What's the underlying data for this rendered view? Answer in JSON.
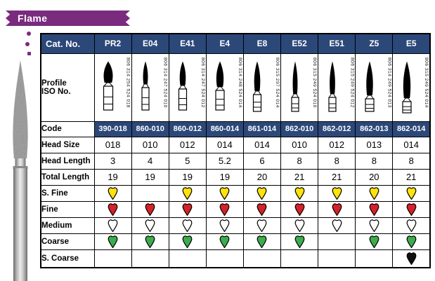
{
  "banner": {
    "title": "Flame"
  },
  "colors": {
    "banner_purple": "#7A2B7E",
    "header_bg": "#2B4879",
    "border": "#000000",
    "grit": {
      "s_fine": "#FFE20A",
      "fine": "#D6212A",
      "medium": "#FFFFFF",
      "coarse": "#3BAD4C",
      "s_coarse": "#101010"
    }
  },
  "table": {
    "header_label": "Cat. No.",
    "profile_label_lines": [
      "Profile",
      "ISO No."
    ],
    "rows": [
      {
        "key": "code",
        "label": "Code",
        "style": "code"
      },
      {
        "key": "head_size",
        "label": "Head Size",
        "style": "num"
      },
      {
        "key": "head_length",
        "label": "Head Length",
        "style": "num"
      },
      {
        "key": "total_length",
        "label": "Total Length",
        "style": "num"
      },
      {
        "key": "s_fine",
        "label": "S. Fine",
        "style": "grit"
      },
      {
        "key": "fine",
        "label": "Fine",
        "style": "grit"
      },
      {
        "key": "medium",
        "label": "Medium",
        "style": "grit"
      },
      {
        "key": "coarse",
        "label": "Coarse",
        "style": "grit"
      },
      {
        "key": "s_coarse",
        "label": "S. Coarse",
        "style": "grit"
      }
    ],
    "columns": [
      {
        "cat_no": "PR2",
        "iso": "806 314 254 524 018",
        "code": "390-018",
        "head_size": "018",
        "head_length": "3",
        "total_length": "19",
        "grits": {
          "s_fine": true,
          "fine": true,
          "medium": true,
          "coarse": true,
          "s_coarse": false
        },
        "icon": {
          "head_h": 32,
          "head_w": 15,
          "shank_h": 34,
          "shank_w": 13
        }
      },
      {
        "cat_no": "E04",
        "iso": "806 314 247 524 010",
        "code": "860-010",
        "head_size": "010",
        "head_length": "4",
        "total_length": "19",
        "grits": {
          "s_fine": false,
          "fine": true,
          "medium": true,
          "coarse": true,
          "s_coarse": false
        },
        "icon": {
          "head_h": 34,
          "head_w": 8,
          "shank_h": 32,
          "shank_w": 10
        }
      },
      {
        "cat_no": "E41",
        "iso": "806 314 247 524 012",
        "code": "860-012",
        "head_size": "012",
        "head_length": "5",
        "total_length": "19",
        "grits": {
          "s_fine": true,
          "fine": true,
          "medium": true,
          "coarse": true,
          "s_coarse": false
        },
        "icon": {
          "head_h": 36,
          "head_w": 10,
          "shank_h": 30,
          "shank_w": 11
        }
      },
      {
        "cat_no": "E4",
        "iso": "806 314 248 524 014",
        "code": "860-014",
        "head_size": "014",
        "head_length": "5.2",
        "total_length": "19",
        "grits": {
          "s_fine": true,
          "fine": true,
          "medium": true,
          "coarse": true,
          "s_coarse": false
        },
        "icon": {
          "head_h": 38,
          "head_w": 12,
          "shank_h": 28,
          "shank_w": 12
        }
      },
      {
        "cat_no": "E8",
        "iso": "806 315 297 524 014",
        "code": "861-014",
        "head_size": "014",
        "head_length": "6",
        "total_length": "20",
        "grits": {
          "s_fine": true,
          "fine": true,
          "medium": true,
          "coarse": true,
          "s_coarse": false
        },
        "icon": {
          "head_h": 44,
          "head_w": 10,
          "shank_h": 24,
          "shank_w": 11
        }
      },
      {
        "cat_no": "E52",
        "iso": "806 315 249 524 010",
        "code": "862-010",
        "head_size": "010",
        "head_length": "8",
        "total_length": "21",
        "grits": {
          "s_fine": true,
          "fine": true,
          "medium": true,
          "coarse": true,
          "s_coarse": false
        },
        "icon": {
          "head_h": 48,
          "head_w": 8,
          "shank_h": 20,
          "shank_w": 10
        }
      },
      {
        "cat_no": "E51",
        "iso": "806 315 249 524 012",
        "code": "862-012",
        "head_size": "012",
        "head_length": "8",
        "total_length": "21",
        "grits": {
          "s_fine": true,
          "fine": true,
          "medium": true,
          "coarse": false,
          "s_coarse": false
        },
        "icon": {
          "head_h": 48,
          "head_w": 9,
          "shank_h": 20,
          "shank_w": 10
        }
      },
      {
        "cat_no": "Z5",
        "iso": "806 314 249 524 013",
        "code": "862-013",
        "head_size": "013",
        "head_length": "8",
        "total_length": "20",
        "grits": {
          "s_fine": true,
          "fine": true,
          "medium": true,
          "coarse": true,
          "s_coarse": false
        },
        "icon": {
          "head_h": 50,
          "head_w": 11,
          "shank_h": 18,
          "shank_w": 12
        }
      },
      {
        "cat_no": "E5",
        "iso": "806 315 249 524 014",
        "code": "862-014",
        "head_size": "014",
        "head_length": "8",
        "total_length": "21",
        "grits": {
          "s_fine": true,
          "fine": true,
          "medium": true,
          "coarse": true,
          "s_coarse": true
        },
        "icon": {
          "head_h": 54,
          "head_w": 12,
          "shank_h": 16,
          "shank_w": 12
        }
      }
    ]
  }
}
